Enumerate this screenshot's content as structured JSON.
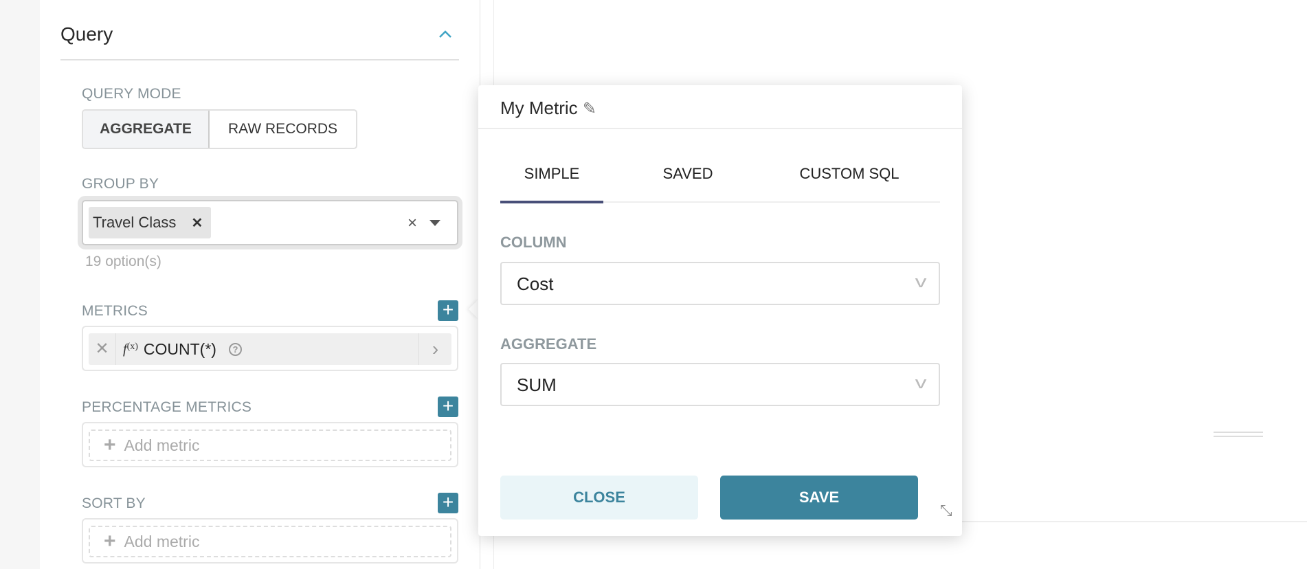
{
  "query_panel": {
    "title": "Query",
    "query_mode": {
      "label": "QUERY MODE",
      "options": [
        "AGGREGATE",
        "RAW RECORDS"
      ],
      "selected": "AGGREGATE"
    },
    "group_by": {
      "label": "GROUP BY",
      "tags": [
        "Travel Class"
      ],
      "options_count": "19 option(s)"
    },
    "metrics": {
      "label": "METRICS",
      "items": [
        {
          "fx": "f",
          "fx_arg": "(x)",
          "name": "COUNT(*)"
        }
      ]
    },
    "percentage_metrics": {
      "label": "PERCENTAGE METRICS",
      "placeholder": "Add metric"
    },
    "sort_by": {
      "label": "SORT BY",
      "placeholder": "Add metric"
    }
  },
  "metric_popover": {
    "title": "My Metric",
    "tabs": [
      "SIMPLE",
      "SAVED",
      "CUSTOM SQL"
    ],
    "active_tab": "SIMPLE",
    "column": {
      "label": "COLUMN",
      "value": "Cost"
    },
    "aggregate": {
      "label": "AGGREGATE",
      "value": "SUM"
    },
    "close_label": "CLOSE",
    "save_label": "SAVE"
  },
  "colors": {
    "accent": "#3c849d",
    "tab_active": "#484f78",
    "close_bg": "#eaf5f8"
  }
}
